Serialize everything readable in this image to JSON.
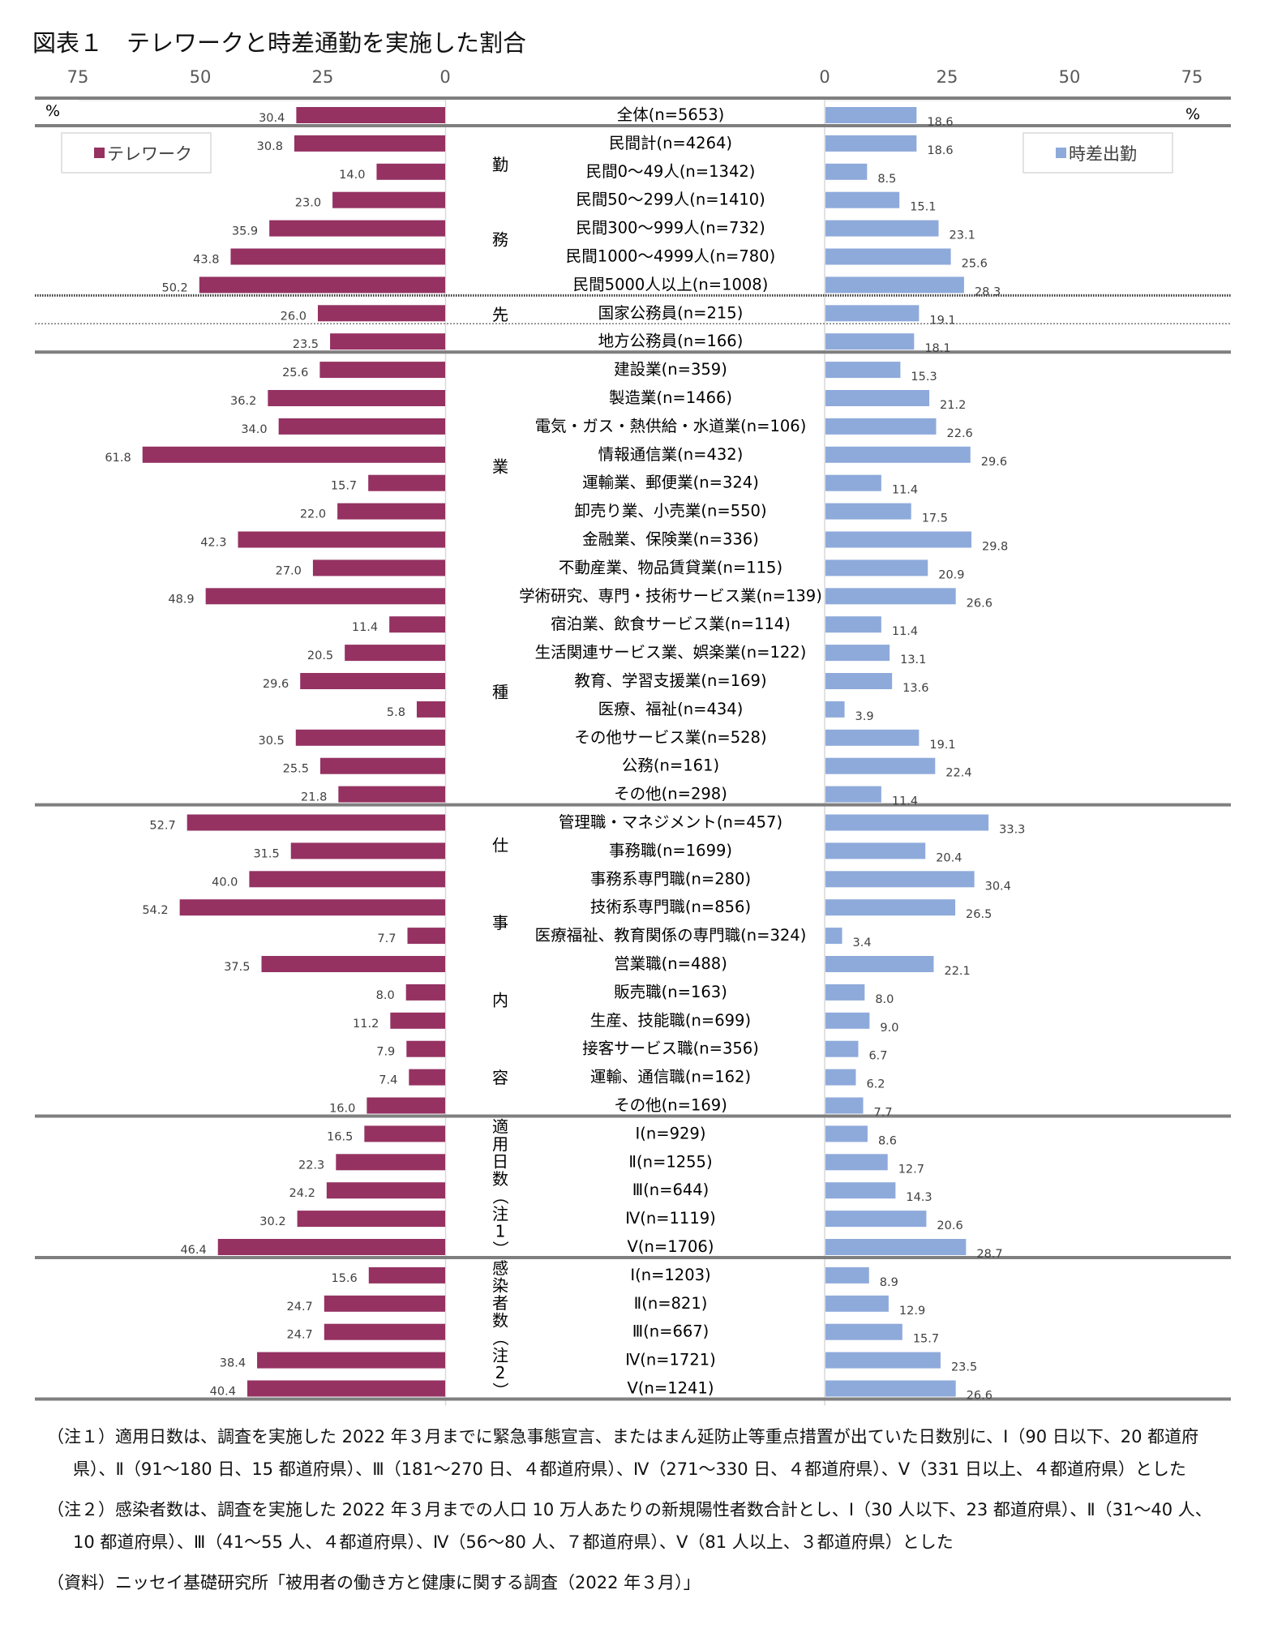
{
  "title": "図表１　テレワークと時差通勤を実施した割合",
  "chart_data": {
    "type": "bar",
    "orientation": "horizontal-butterfly",
    "title": "図表１　テレワークと時差通勤を実施した割合",
    "unit_label": "%",
    "axis_ticks": [
      75,
      50,
      25,
      0
    ],
    "xlim": [
      0,
      75
    ],
    "grid": false,
    "legend": [
      {
        "name": "テレワーク",
        "color": "#953262",
        "placement": "top-left"
      },
      {
        "name": "時差出勤",
        "color": "#8eaadb",
        "placement": "top-right"
      }
    ],
    "series": [
      {
        "name": "テレワーク",
        "side": "left",
        "color": "#953262",
        "values": [
          30.4,
          30.8,
          14.0,
          23.0,
          35.9,
          43.8,
          50.2,
          26.0,
          23.5,
          25.6,
          36.2,
          34.0,
          61.8,
          15.7,
          22.0,
          42.3,
          27.0,
          48.9,
          11.4,
          20.5,
          29.6,
          5.8,
          30.5,
          25.5,
          21.8,
          52.7,
          31.5,
          40.0,
          54.2,
          7.7,
          37.5,
          8.0,
          11.2,
          7.9,
          7.4,
          16.0,
          16.5,
          22.3,
          24.2,
          30.2,
          46.4,
          15.6,
          24.7,
          24.7,
          38.4,
          40.4
        ]
      },
      {
        "name": "時差出勤",
        "side": "right",
        "color": "#8eaadb",
        "values": [
          18.6,
          18.6,
          8.5,
          15.1,
          23.1,
          25.6,
          28.3,
          19.1,
          18.1,
          15.3,
          21.2,
          22.6,
          29.6,
          11.4,
          17.5,
          29.8,
          20.9,
          26.6,
          11.4,
          13.1,
          13.6,
          3.9,
          19.1,
          22.4,
          11.4,
          33.3,
          20.4,
          30.4,
          26.5,
          3.4,
          22.1,
          8.0,
          9.0,
          6.7,
          6.2,
          7.7,
          8.6,
          12.7,
          14.3,
          20.6,
          28.7,
          8.9,
          12.9,
          15.7,
          23.5,
          26.6
        ]
      }
    ],
    "categories": [
      "全体(n=5653)",
      "民間計(n=4264)",
      "民間0～49人(n=1342)",
      "民間50～299人(n=1410)",
      "民間300～999人(n=732)",
      "民間1000～4999人(n=780)",
      "民間5000人以上(n=1008)",
      "国家公務員(n=215)",
      "地方公務員(n=166)",
      "建設業(n=359)",
      "製造業(n=1466)",
      "電気・ガス・熱供給・水道業(n=106)",
      "情報通信業(n=432)",
      "運輸業、郵便業(n=324)",
      "卸売り業、小売業(n=550)",
      "金融業、保険業(n=336)",
      "不動産業、物品賃貸業(n=115)",
      "学術研究、専門・技術サービス業(n=139)",
      "宿泊業、飲食サービス業(n=114)",
      "生活関連サービス業、娯楽業(n=122)",
      "教育、学習支援業(n=169)",
      "医療、福祉(n=434)",
      "その他サービス業(n=528)",
      "公務(n=161)",
      "その他(n=298)",
      "管理職・マネジメント(n=457)",
      "事務職(n=1699)",
      "事務系専門職(n=280)",
      "技術系専門職(n=856)",
      "医療福祉、教育関係の専門職(n=324)",
      "営業職(n=488)",
      "販売職(n=163)",
      "生産、技能職(n=699)",
      "接客サービス職(n=356)",
      "運輸、通信職(n=162)",
      "その他(n=169)",
      "Ⅰ(n=929)",
      "Ⅱ(n=1255)",
      "Ⅲ(n=644)",
      "Ⅳ(n=1119)",
      "Ⅴ(n=1706)",
      "Ⅰ(n=1203)",
      "Ⅱ(n=821)",
      "Ⅲ(n=667)",
      "Ⅳ(n=1721)",
      "Ⅴ(n=1241)"
    ],
    "groups": [
      {
        "label": "",
        "start": 0,
        "end": 0
      },
      {
        "label": "勤務先",
        "chars": [
          "勤",
          "務",
          "先"
        ],
        "start": 1,
        "end": 8
      },
      {
        "label": "業種",
        "chars": [
          "業",
          "種"
        ],
        "start": 9,
        "end": 24
      },
      {
        "label": "仕事内容",
        "chars": [
          "仕",
          "事",
          "内",
          "容"
        ],
        "start": 25,
        "end": 35
      },
      {
        "label": "適用日数（注1）",
        "chars": [
          "適",
          "用",
          "日",
          "数",
          "（",
          "注",
          "1",
          "）"
        ],
        "start": 36,
        "end": 40
      },
      {
        "label": "感染者数（注2）",
        "chars": [
          "感",
          "染",
          "者",
          "数",
          "（",
          "注",
          "2",
          "）"
        ],
        "start": 41,
        "end": 45
      }
    ]
  },
  "notes": [
    "（注１）適用日数は、調査を実施した 2022 年３月までに緊急事態宣言、またはまん延防止等重点措置が出ていた日数別に、Ⅰ（90 日以下、20 都道府県）、Ⅱ（91～180 日、15 都道府県）、Ⅲ（181～270 日、４都道府県）、Ⅳ（271～330 日、４都道府県）、Ⅴ（331 日以上、４都道府県）とした",
    "（注２）感染者数は、調査を実施した 2022 年３月までの人口 10 万人あたりの新規陽性者数合計とし、Ⅰ（30 人以下、23 都道府県）、Ⅱ（31～40 人、10 都道府県）、Ⅲ（41～55 人、４都道府県）、Ⅳ（56～80 人、７都道府県）、Ⅴ（81 人以上、３都道府県）とした",
    "（資料）ニッセイ基礎研究所「被用者の働き方と健康に関する調査（2022 年３月）」"
  ]
}
